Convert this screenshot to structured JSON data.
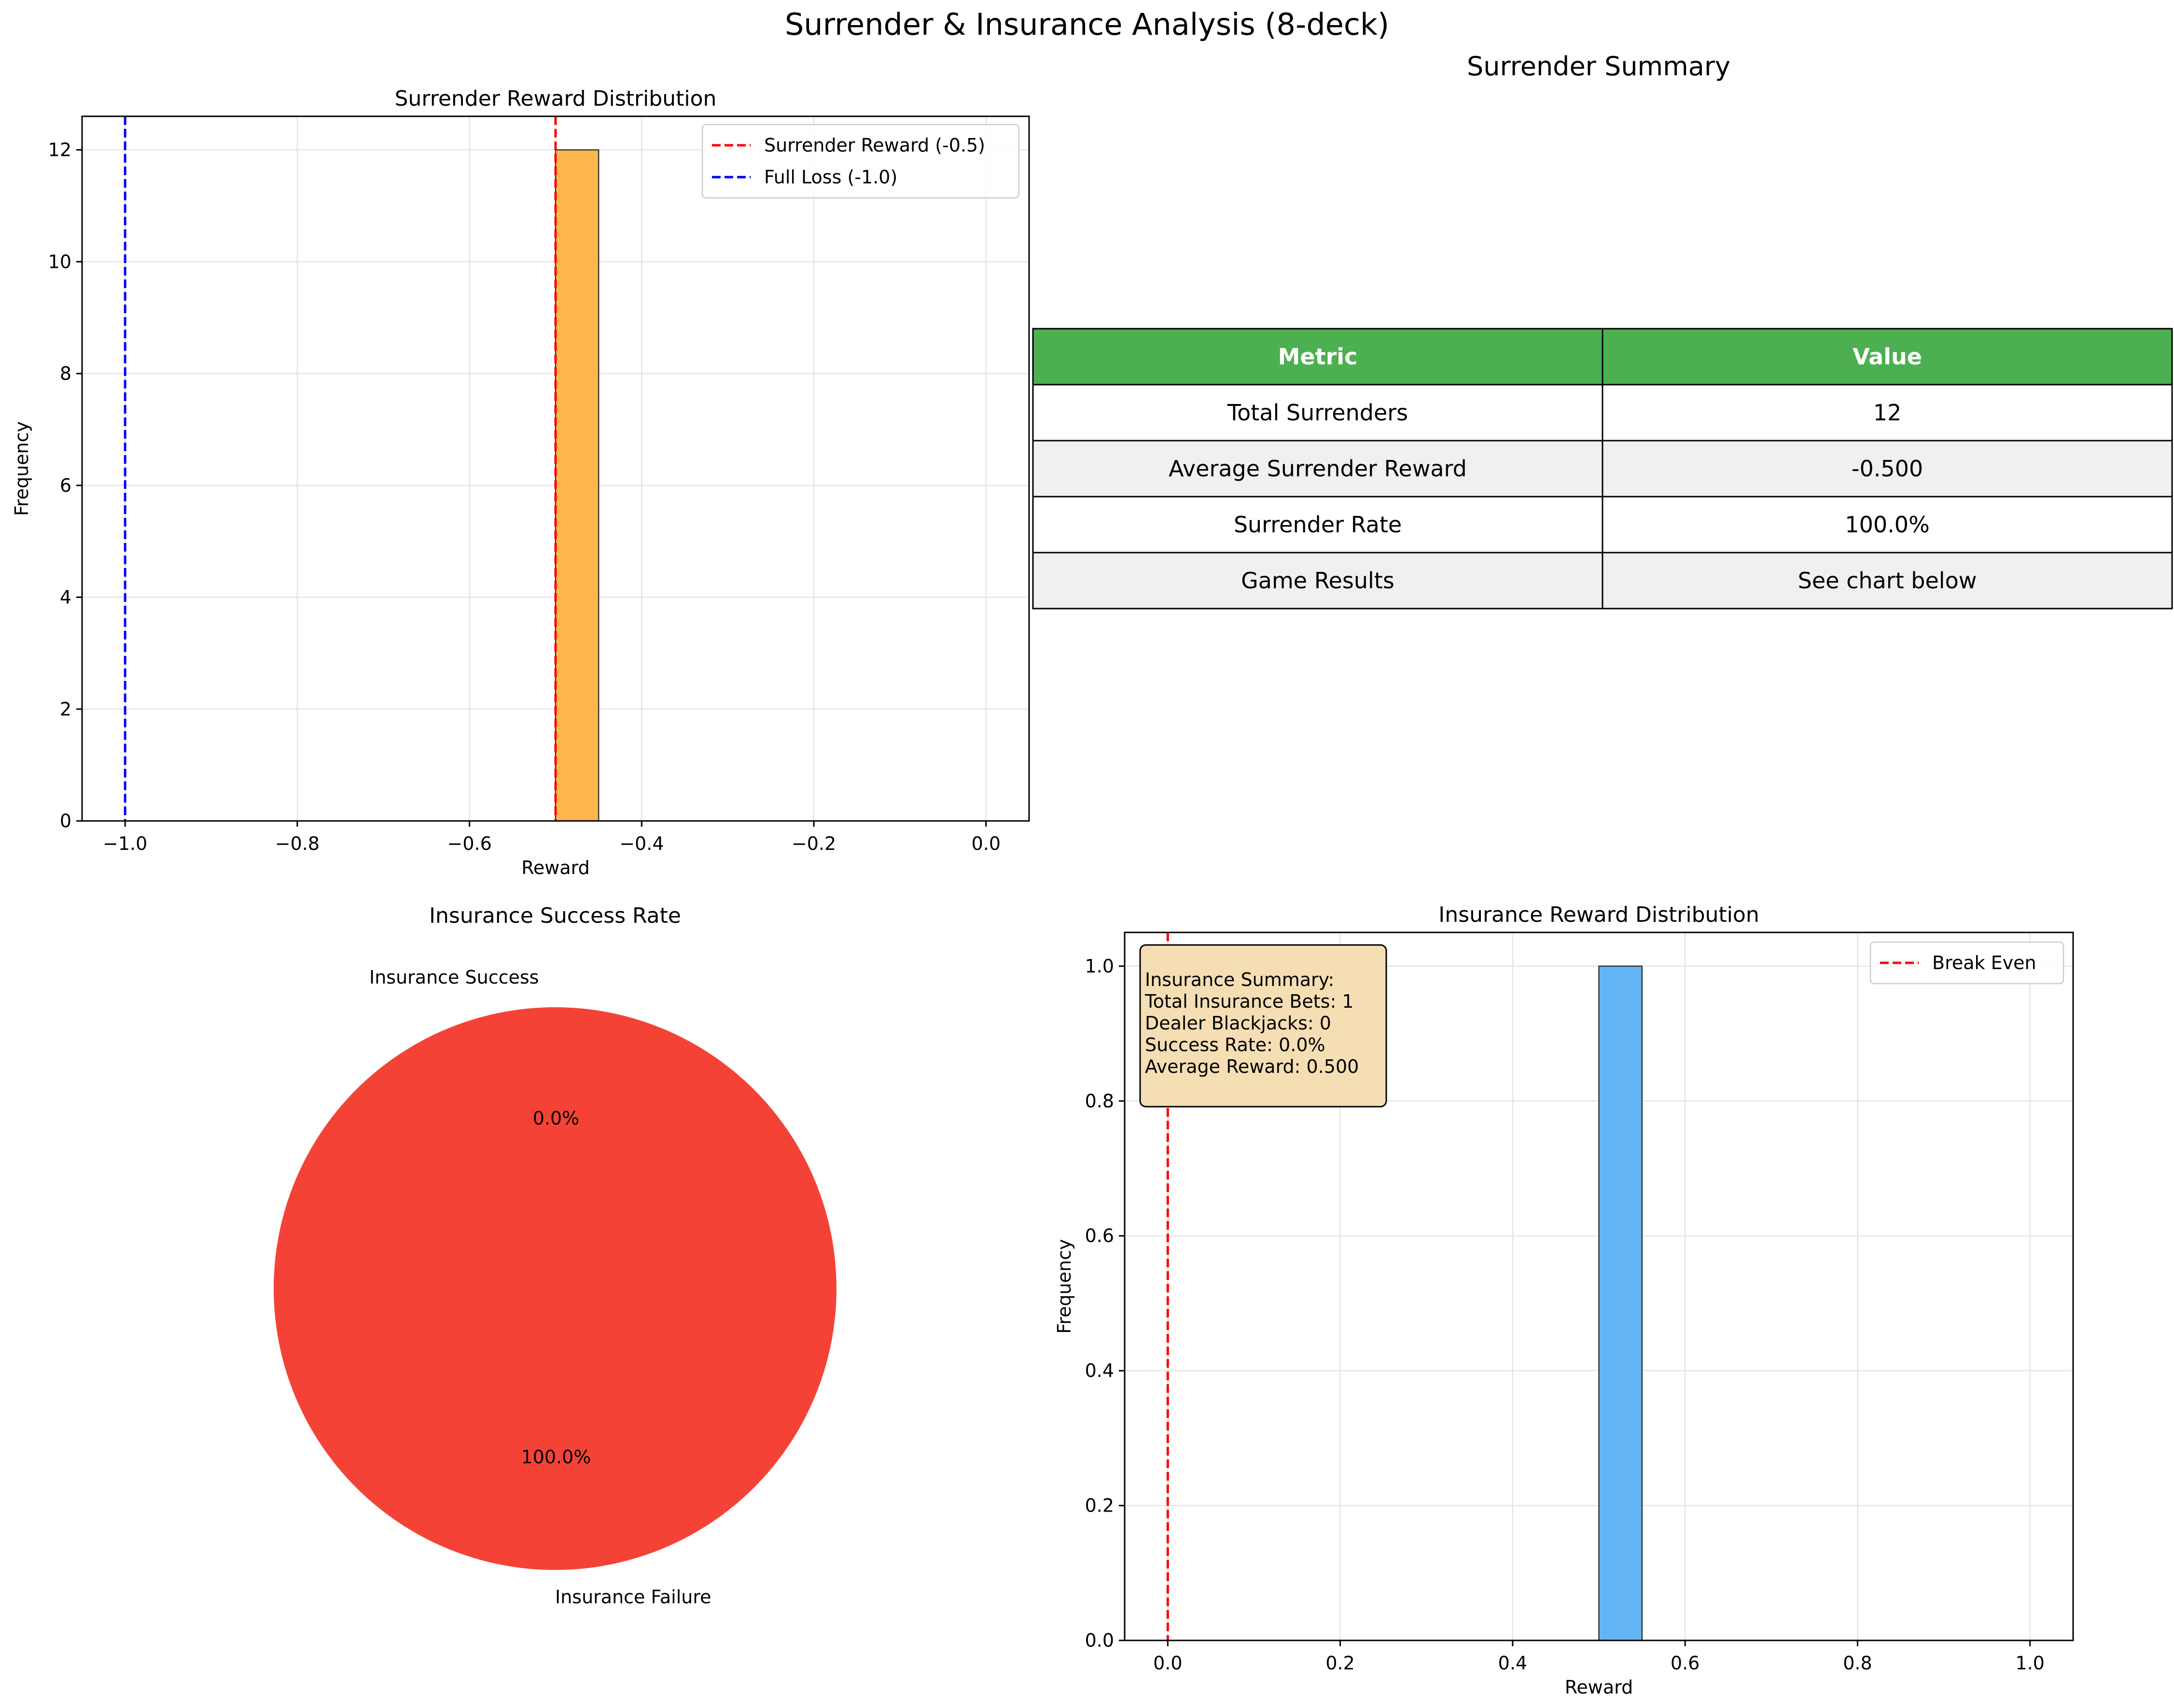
{
  "figure": {
    "title": "Surrender & Insurance Analysis (8-deck)"
  },
  "colors": {
    "surrender_bar": "#ffb74d",
    "insurance_bar": "#64b5f6",
    "pie_failure": "#f44336",
    "red_line": "#ff0000",
    "blue_line": "#0000ff",
    "table_header": "#4caf50",
    "table_alt_row": "#f0f0f0",
    "annotation_box": "#f5deb3"
  },
  "chart_data": [
    {
      "type": "bar",
      "title": "Surrender Reward Distribution",
      "xlabel": "Reward",
      "ylabel": "Frequency",
      "xlim": [
        -1.05,
        0.05
      ],
      "ylim": [
        0,
        12.6
      ],
      "xticks": [
        -1.0,
        -0.8,
        -0.6,
        -0.4,
        -0.2,
        0.0
      ],
      "xtick_labels": [
        "−1.0",
        "−0.8",
        "−0.6",
        "−0.4",
        "−0.2",
        "0.0"
      ],
      "yticks": [
        0,
        2,
        4,
        6,
        8,
        10,
        12
      ],
      "grid": true,
      "legend_position": "top-right",
      "bins": [
        {
          "x0": -0.5,
          "x1": -0.45,
          "count": 12
        }
      ],
      "vlines": [
        {
          "x": -0.5,
          "label": "Surrender Reward (-0.5)",
          "color": "#ff0000"
        },
        {
          "x": -1.0,
          "label": "Full Loss (-1.0)",
          "color": "#0000ff"
        }
      ]
    },
    {
      "type": "table",
      "title": "Surrender Summary",
      "columns": [
        "Metric",
        "Value"
      ],
      "rows": [
        [
          "Total Surrenders",
          "12"
        ],
        [
          "Average Surrender Reward",
          "-0.500"
        ],
        [
          "Surrender Rate",
          "100.0%"
        ],
        [
          "Game Results",
          "See chart below"
        ]
      ]
    },
    {
      "type": "pie",
      "title": "Insurance Success Rate",
      "labels": [
        "Insurance Success",
        "Insurance Failure"
      ],
      "values": [
        0,
        1
      ],
      "percent_labels": [
        "0.0%",
        "100.0%"
      ],
      "colors": [
        "#4caf50",
        "#f44336"
      ]
    },
    {
      "type": "bar",
      "title": "Insurance Reward Distribution",
      "xlabel": "Reward",
      "ylabel": "Frequency",
      "xlim": [
        -0.05,
        1.05
      ],
      "ylim": [
        0,
        1.05
      ],
      "xticks": [
        0.0,
        0.2,
        0.4,
        0.6,
        0.8,
        1.0
      ],
      "xtick_labels": [
        "0.0",
        "0.2",
        "0.4",
        "0.6",
        "0.8",
        "1.0"
      ],
      "yticks": [
        0.0,
        0.2,
        0.4,
        0.6,
        0.8,
        1.0
      ],
      "ytick_labels": [
        "0.0",
        "0.2",
        "0.4",
        "0.6",
        "0.8",
        "1.0"
      ],
      "grid": true,
      "legend_position": "top-right",
      "bins": [
        {
          "x0": 0.5,
          "x1": 0.55,
          "count": 1
        }
      ],
      "vlines": [
        {
          "x": 0.0,
          "label": "Break Even",
          "color": "#ff0000"
        }
      ],
      "annotation": [
        "Insurance Summary:",
        "Total Insurance Bets: 1",
        "Dealer Blackjacks: 0",
        "Success Rate: 0.0%",
        "Average Reward: 0.500"
      ]
    }
  ]
}
